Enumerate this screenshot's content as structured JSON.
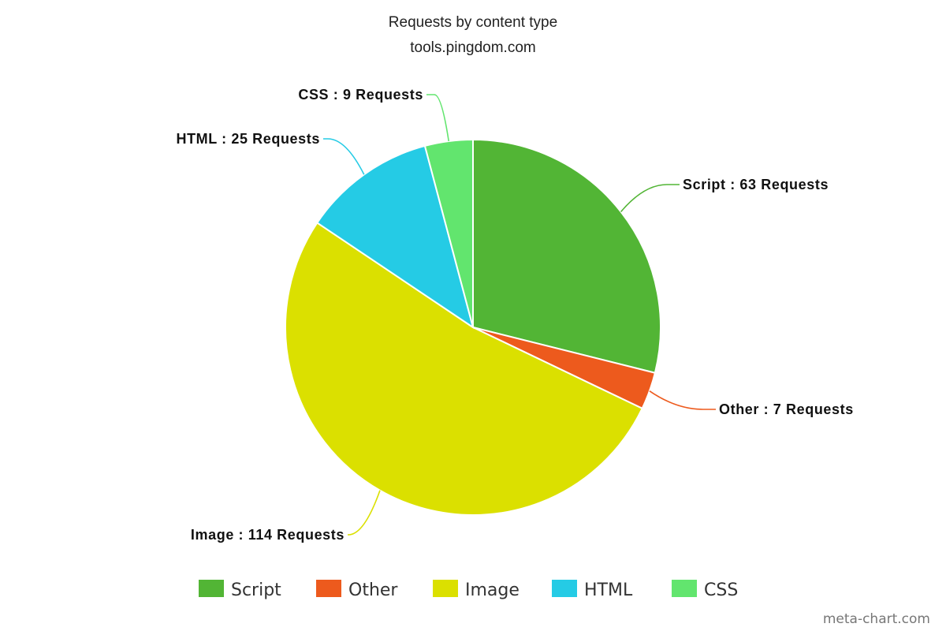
{
  "chart_data": {
    "type": "pie",
    "title": "Requests by content type",
    "subtitle": "tools.pingdom.com",
    "slices": [
      {
        "name": "Script",
        "value": 63,
        "label": "Script : 63 Requests",
        "color": "#52b535"
      },
      {
        "name": "Other",
        "value": 7,
        "label": "Other : 7 Requests",
        "color": "#ed5a1d"
      },
      {
        "name": "Image",
        "value": 114,
        "label": "Image : 114 Requests",
        "color": "#dbe000"
      },
      {
        "name": "HTML",
        "value": 25,
        "label": "HTML : 25 Requests",
        "color": "#25cbe5"
      },
      {
        "name": "CSS",
        "value": 9,
        "label": "CSS : 9 Requests",
        "color": "#62e56e"
      }
    ],
    "legend_position": "bottom"
  },
  "credit": "meta-chart.com"
}
